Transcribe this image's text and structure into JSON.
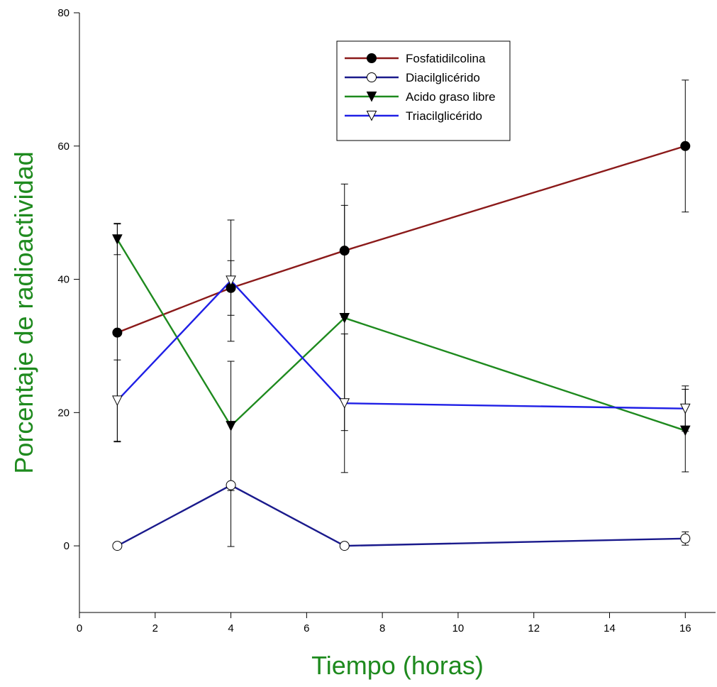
{
  "chart_data": {
    "type": "line",
    "title": "",
    "xlabel": "Tiempo (horas)",
    "ylabel": "Porcentaje de radioactividad",
    "axis_title_color": "#1e8a1e",
    "xlim": [
      0,
      16.8
    ],
    "ylim": [
      -10,
      80
    ],
    "xticks": [
      0,
      2,
      4,
      6,
      8,
      10,
      12,
      14,
      16
    ],
    "yticks": [
      0,
      20,
      40,
      60,
      80
    ],
    "grid": false,
    "legend_position": "top-right",
    "series": [
      {
        "name": "Fosfatidilcolina",
        "color": "#8b1a1a",
        "marker": "circle-filled",
        "x": [
          1,
          4,
          7,
          16
        ],
        "y": [
          32,
          38.7,
          44.3,
          60
        ],
        "err": [
          16.4,
          4.1,
          10,
          9.9
        ]
      },
      {
        "name": "Diacilglicérido",
        "color": "#1a1a8c",
        "marker": "circle-open",
        "x": [
          1,
          4,
          7,
          16
        ],
        "y": [
          0,
          9.1,
          0,
          1.1
        ],
        "err": [
          0,
          9.2,
          0,
          1
        ]
      },
      {
        "name": "Acido graso libre",
        "color": "#1e8a1e",
        "marker": "triangle-down-filled",
        "x": [
          1,
          4,
          7,
          16
        ],
        "y": [
          46,
          18,
          34.2,
          17.3
        ],
        "err": [
          2.3,
          9.7,
          16.9,
          6.2
        ]
      },
      {
        "name": "Triacilglicérido",
        "color": "#1f1fe6",
        "marker": "triangle-down-open",
        "x": [
          1,
          4,
          7,
          16
        ],
        "y": [
          21.8,
          39.8,
          21.4,
          20.6
        ],
        "err": [
          6.1,
          9.1,
          10.4,
          3.4
        ]
      }
    ]
  }
}
